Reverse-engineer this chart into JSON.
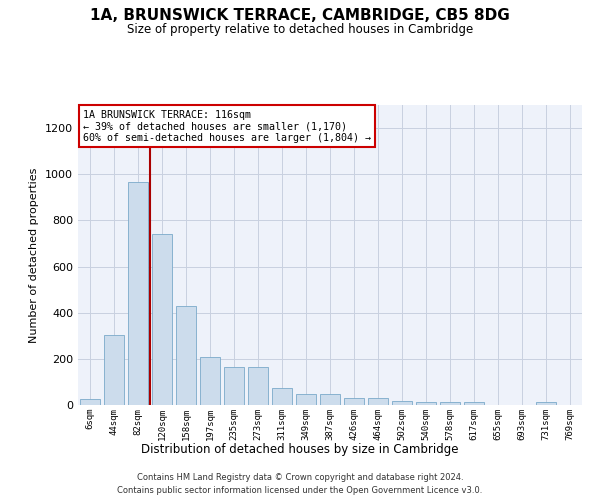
{
  "title": "1A, BRUNSWICK TERRACE, CAMBRIDGE, CB5 8DG",
  "subtitle": "Size of property relative to detached houses in Cambridge",
  "xlabel": "Distribution of detached houses by size in Cambridge",
  "ylabel": "Number of detached properties",
  "bar_color": "#ccdcec",
  "bar_edge_color": "#7aaaca",
  "bar_values": [
    25,
    305,
    965,
    740,
    430,
    210,
    165,
    165,
    75,
    47,
    47,
    32,
    32,
    18,
    12,
    12,
    12,
    0,
    0,
    12,
    0
  ],
  "bar_labels": [
    "6sqm",
    "44sqm",
    "82sqm",
    "120sqm",
    "158sqm",
    "197sqm",
    "235sqm",
    "273sqm",
    "311sqm",
    "349sqm",
    "387sqm",
    "426sqm",
    "464sqm",
    "502sqm",
    "540sqm",
    "578sqm",
    "617sqm",
    "655sqm",
    "693sqm",
    "731sqm",
    "769sqm"
  ],
  "ylim": [
    0,
    1300
  ],
  "yticks": [
    0,
    200,
    400,
    600,
    800,
    1000,
    1200
  ],
  "property_line_x": 2.5,
  "property_line_label": "1A BRUNSWICK TERRACE: 116sqm",
  "annotation_line1": "← 39% of detached houses are smaller (1,170)",
  "annotation_line2": "60% of semi-detached houses are larger (1,804) →",
  "annotation_box_color": "#ffffff",
  "annotation_box_edge_color": "#cc0000",
  "footer_line1": "Contains HM Land Registry data © Crown copyright and database right 2024.",
  "footer_line2": "Contains public sector information licensed under the Open Government Licence v3.0.",
  "background_color": "#eef2fa",
  "grid_color": "#c8d0e0"
}
